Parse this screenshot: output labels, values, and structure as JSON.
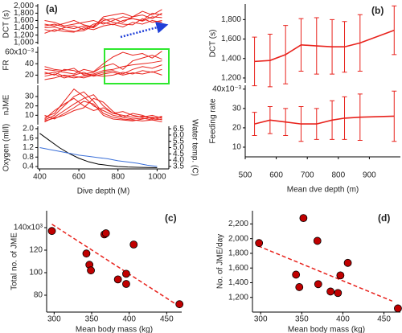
{
  "chart_data": [
    {
      "type": "line",
      "label": "(a)",
      "xlim": [
        390,
        1060
      ],
      "xticks": [
        400,
        600,
        800,
        1000
      ],
      "xlabel": "Dive depth (M)",
      "panels": [
        {
          "ylabel": "DCT (s)",
          "ylim": [
            950,
            2050
          ],
          "yticks": [
            {
              "value": 1000,
              "label": "1,000"
            },
            {
              "value": 1200,
              "label": "1,200"
            },
            {
              "value": 1400,
              "label": "1,400"
            },
            {
              "value": 1600,
              "label": "1,600"
            },
            {
              "value": 1800,
              "label": "1,800"
            },
            {
              "value": 2000,
              "label": "2,000"
            }
          ],
          "x": [
            425,
            475,
            525,
            575,
            625,
            675,
            725,
            775,
            825,
            875,
            925,
            975,
            1025
          ],
          "series": [
            {
              "color": "#e8221c",
              "values": [
                1450,
                1500,
                1420,
                1380,
                1450,
                1400,
                1600,
                1650,
                1550,
                1700,
                1750,
                1650,
                1800
              ]
            },
            {
              "color": "#e8221c",
              "values": [
                1350,
                1300,
                1400,
                1450,
                1350,
                1500,
                1550,
                1480,
                1600,
                1650,
                1580,
                1700,
                1680
              ]
            },
            {
              "color": "#e8221c",
              "values": [
                1500,
                1450,
                1520,
                1600,
                1480,
                1420,
                1700,
                1750,
                1800,
                1700,
                1850,
                1750,
                1900
              ]
            },
            {
              "color": "#e8221c",
              "values": [
                1250,
                1350,
                1300,
                1280,
                1400,
                1350,
                1450,
                1500,
                1420,
                1550,
                1500,
                1600,
                1550
              ]
            },
            {
              "color": "#e8221c",
              "values": [
                1600,
                1550,
                1450,
                1500,
                1550,
                1600,
                1500,
                1600,
                1700,
                1650,
                1600,
                1800,
                1750
              ]
            },
            {
              "color": "#e8221c",
              "values": [
                1400,
                1420,
                1350,
                1300,
                1320,
                1450,
                1650,
                1550,
                1500,
                1480,
                1650,
                1550,
                1600
              ]
            }
          ]
        },
        {
          "ylabel": "FR",
          "ylim": [
            5,
            70
          ],
          "yticks": [
            20,
            40,
            {
              "value": 60,
              "label": "60x10⁻³"
            }
          ],
          "x": [
            425,
            475,
            525,
            575,
            625,
            675,
            725,
            775,
            825,
            875,
            925,
            975,
            1025
          ],
          "series": [
            {
              "color": "#e8221c",
              "values": [
                25,
                20,
                30,
                28,
                22,
                25,
                35,
                40,
                30,
                45,
                50,
                55,
                48
              ]
            },
            {
              "color": "#e8221c",
              "values": [
                18,
                22,
                15,
                20,
                25,
                18,
                22,
                25,
                20,
                24,
                22,
                26,
                20
              ]
            },
            {
              "color": "#e8221c",
              "values": [
                30,
                28,
                25,
                22,
                30,
                26,
                40,
                52,
                60,
                55,
                58,
                50,
                62
              ]
            },
            {
              "color": "#e8221c",
              "values": [
                12,
                15,
                20,
                18,
                15,
                20,
                18,
                20,
                25,
                22,
                28,
                25,
                30
              ]
            },
            {
              "color": "#e8221c",
              "values": [
                35,
                30,
                28,
                32,
                20,
                22,
                28,
                30,
                35,
                38,
                40,
                42,
                45
              ]
            },
            {
              "color": "#e8221c",
              "values": [
                22,
                25,
                18,
                15,
                18,
                20,
                25,
                28,
                22,
                30,
                35,
                32,
                38
              ]
            }
          ]
        },
        {
          "ylabel": "nJME",
          "ylim": [
            0,
            42
          ],
          "yticks": [
            10,
            20,
            30
          ],
          "x": [
            425,
            475,
            525,
            575,
            625,
            675,
            725,
            775,
            825,
            875,
            925,
            975,
            1025
          ],
          "series": [
            {
              "color": "#e8221c",
              "values": [
                5,
                10,
                20,
                30,
                35,
                25,
                12,
                8,
                6,
                5,
                4,
                5,
                3
              ]
            },
            {
              "color": "#e8221c",
              "values": [
                8,
                12,
                25,
                38,
                30,
                20,
                15,
                10,
                8,
                6,
                7,
                5,
                6
              ]
            },
            {
              "color": "#e8221c",
              "values": [
                3,
                8,
                15,
                22,
                28,
                32,
                20,
                12,
                10,
                8,
                9,
                7,
                8
              ]
            },
            {
              "color": "#e8221c",
              "values": [
                10,
                6,
                12,
                18,
                25,
                22,
                10,
                6,
                5,
                4,
                6,
                8,
                5
              ]
            },
            {
              "color": "#e8221c",
              "values": [
                6,
                15,
                22,
                28,
                20,
                15,
                18,
                12,
                14,
                10,
                8,
                10,
                7
              ]
            },
            {
              "color": "#e8221c",
              "values": [
                4,
                7,
                10,
                15,
                18,
                28,
                24,
                14,
                8,
                12,
                10,
                6,
                9
              ]
            }
          ]
        },
        {
          "ylabel": "Oxygen (ml/l)",
          "ylim": [
            0.3,
            2.1
          ],
          "yticks": [
            0.4,
            0.8,
            1.2,
            1.6,
            {
              "value": 2,
              "label": "2.0"
            }
          ],
          "y2label": "Water temp. (C)",
          "y2lim": [
            3.3,
            6.7
          ],
          "y2ticks": [
            3.5,
            {
              "value": 4,
              "label": "4.0"
            },
            4.5,
            {
              "value": 5,
              "label": "5.0"
            },
            5.5,
            {
              "value": 6,
              "label": "6.0"
            },
            6.5
          ],
          "x": [
            400,
            450,
            500,
            550,
            600,
            650,
            700,
            750,
            800,
            850,
            900,
            950,
            1000
          ],
          "series": [
            {
              "color": "#000000",
              "values": [
                1.8,
                1.5,
                1.2,
                0.95,
                0.75,
                0.6,
                0.5,
                0.45,
                0.4,
                0.38,
                0.37,
                0.36,
                0.35
              ]
            },
            {
              "color": "#3a6fd8",
              "axis": "y2",
              "values": [
                5.0,
                4.85,
                4.7,
                4.55,
                4.4,
                4.3,
                4.2,
                4.1,
                3.95,
                3.85,
                3.75,
                3.6,
                3.5
              ]
            }
          ]
        }
      ]
    },
    {
      "type": "line",
      "label": "(b)",
      "xlim": [
        500,
        1000
      ],
      "xticks": [
        500,
        600,
        700,
        800,
        900
      ],
      "xlabel": "Mean dve depth (m)",
      "panels": [
        {
          "ylabel": "DCT (s)",
          "ylim": [
            1150,
            1960
          ],
          "yticks": [
            {
              "value": 1200,
              "label": "1,200"
            },
            {
              "value": 1400,
              "label": "1,400"
            },
            {
              "value": 1600,
              "label": "1,600"
            },
            {
              "value": 1800,
              "label": "1,800"
            }
          ],
          "x": [
            530,
            580,
            630,
            680,
            730,
            780,
            820,
            870,
            980
          ],
          "series": [
            {
              "color": "#e8221c",
              "values": [
                1370,
                1380,
                1440,
                1540,
                1530,
                1520,
                1520,
                1560,
                1690
              ],
              "errors": [
                250,
                270,
                300,
                270,
                290,
                280,
                260,
                290,
                250
              ]
            }
          ]
        },
        {
          "ylabel": "Feeding rate",
          "ylim": [
            5,
            42
          ],
          "yticks": [
            10,
            20,
            30,
            {
              "value": 40,
              "label": "40x10⁻³"
            }
          ],
          "x": [
            530,
            580,
            630,
            680,
            730,
            780,
            820,
            870,
            980
          ],
          "series": [
            {
              "color": "#e8221c",
              "values": [
                22,
                24,
                23,
                22,
                22,
                24,
                25,
                25.5,
                26
              ],
              "errors": [
                6,
                7,
                7,
                9,
                8,
                10,
                11,
                12,
                13
              ]
            }
          ]
        }
      ]
    },
    {
      "type": "scatter",
      "label": "(c)",
      "xlim": [
        290,
        470
      ],
      "xticks": [
        300,
        350,
        400,
        450
      ],
      "xlabel": "Mean body mass (kg)",
      "panels": [
        {
          "ylabel": "Total no. of JME",
          "ylim": [
            65,
            155
          ],
          "yticks": [
            80,
            100,
            120,
            {
              "value": 140,
              "label": "140x10³"
            }
          ],
          "x": [
            297,
            343,
            347,
            349,
            367,
            369,
            385,
            396,
            396,
            406,
            467
          ],
          "series": [
            {
              "color": "#c00000",
              "values": [
                137,
                117,
                107,
                102,
                134,
                135,
                94,
                90,
                99,
                125,
                72
              ]
            }
          ],
          "trend": {
            "x": [
              297,
              467
            ],
            "y": [
              143,
              70
            ]
          }
        }
      ]
    },
    {
      "type": "scatter",
      "label": "(d)",
      "xlim": [
        290,
        470
      ],
      "xticks": [
        300,
        350,
        400,
        450
      ],
      "xlabel": "Mean body mass (kg)",
      "panels": [
        {
          "ylabel": "No. of JME/day",
          "ylim": [
            1000,
            2380
          ],
          "yticks": [
            {
              "value": 1200,
              "label": "1,200"
            },
            {
              "value": 1400,
              "label": "1,400"
            },
            {
              "value": 1600,
              "label": "1,600"
            },
            {
              "value": 1800,
              "label": "1,800"
            },
            {
              "value": 2000,
              "label": "2,000"
            },
            {
              "value": 2200,
              "label": "2,200"
            }
          ],
          "x": [
            298,
            343,
            347,
            352,
            369,
            370,
            385,
            394,
            397,
            406,
            467
          ],
          "series": [
            {
              "color": "#c00000",
              "values": [
                1940,
                1510,
                1340,
                2280,
                1970,
                1380,
                1280,
                1260,
                1500,
                1670,
                1050
              ]
            }
          ],
          "trend": {
            "x": [
              297,
              460
            ],
            "y": [
              1900,
              1150
            ]
          }
        }
      ]
    }
  ]
}
